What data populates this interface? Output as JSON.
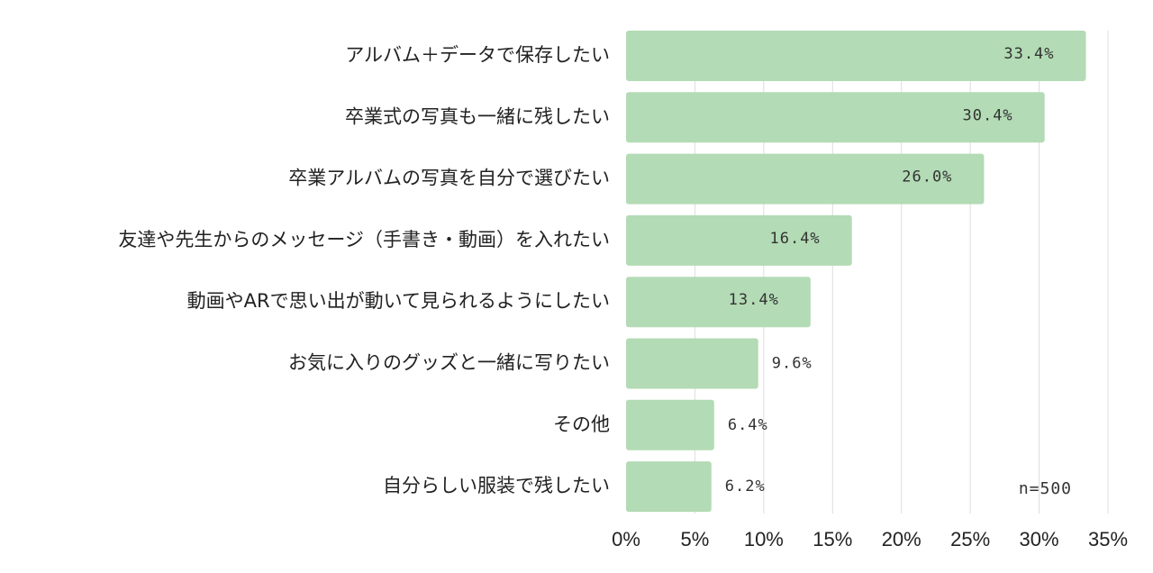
{
  "chart_data": {
    "type": "bar",
    "orientation": "horizontal",
    "categories": [
      "アルバム＋データで保存したい",
      "卒業式の写真も一緒に残したい",
      "卒業アルバムの写真を自分で選びたい",
      "友達や先生からのメッセージ（手書き・動画）を入れたい",
      "動画やARで思い出が動いて見られるようにしたい",
      "お気に入りのグッズと一緒に写りたい",
      "その他",
      "自分らしい服装で残したい"
    ],
    "values": [
      33.4,
      30.4,
      26.0,
      16.4,
      13.4,
      9.6,
      6.4,
      6.2
    ],
    "value_labels": [
      "33.4%",
      "30.4%",
      "26.0%",
      "16.4%",
      "13.4%",
      "9.6%",
      "6.4%",
      "6.2%"
    ],
    "xlim": [
      0,
      35
    ],
    "x_ticks": [
      0,
      5,
      10,
      15,
      20,
      25,
      30,
      35
    ],
    "x_tick_labels": [
      "0%",
      "5%",
      "10%",
      "15%",
      "20%",
      "25%",
      "30%",
      "35%"
    ],
    "annotation": "n=500",
    "grid": true,
    "bar_color": "#b3dbb5",
    "grid_color": "#dddddd"
  }
}
